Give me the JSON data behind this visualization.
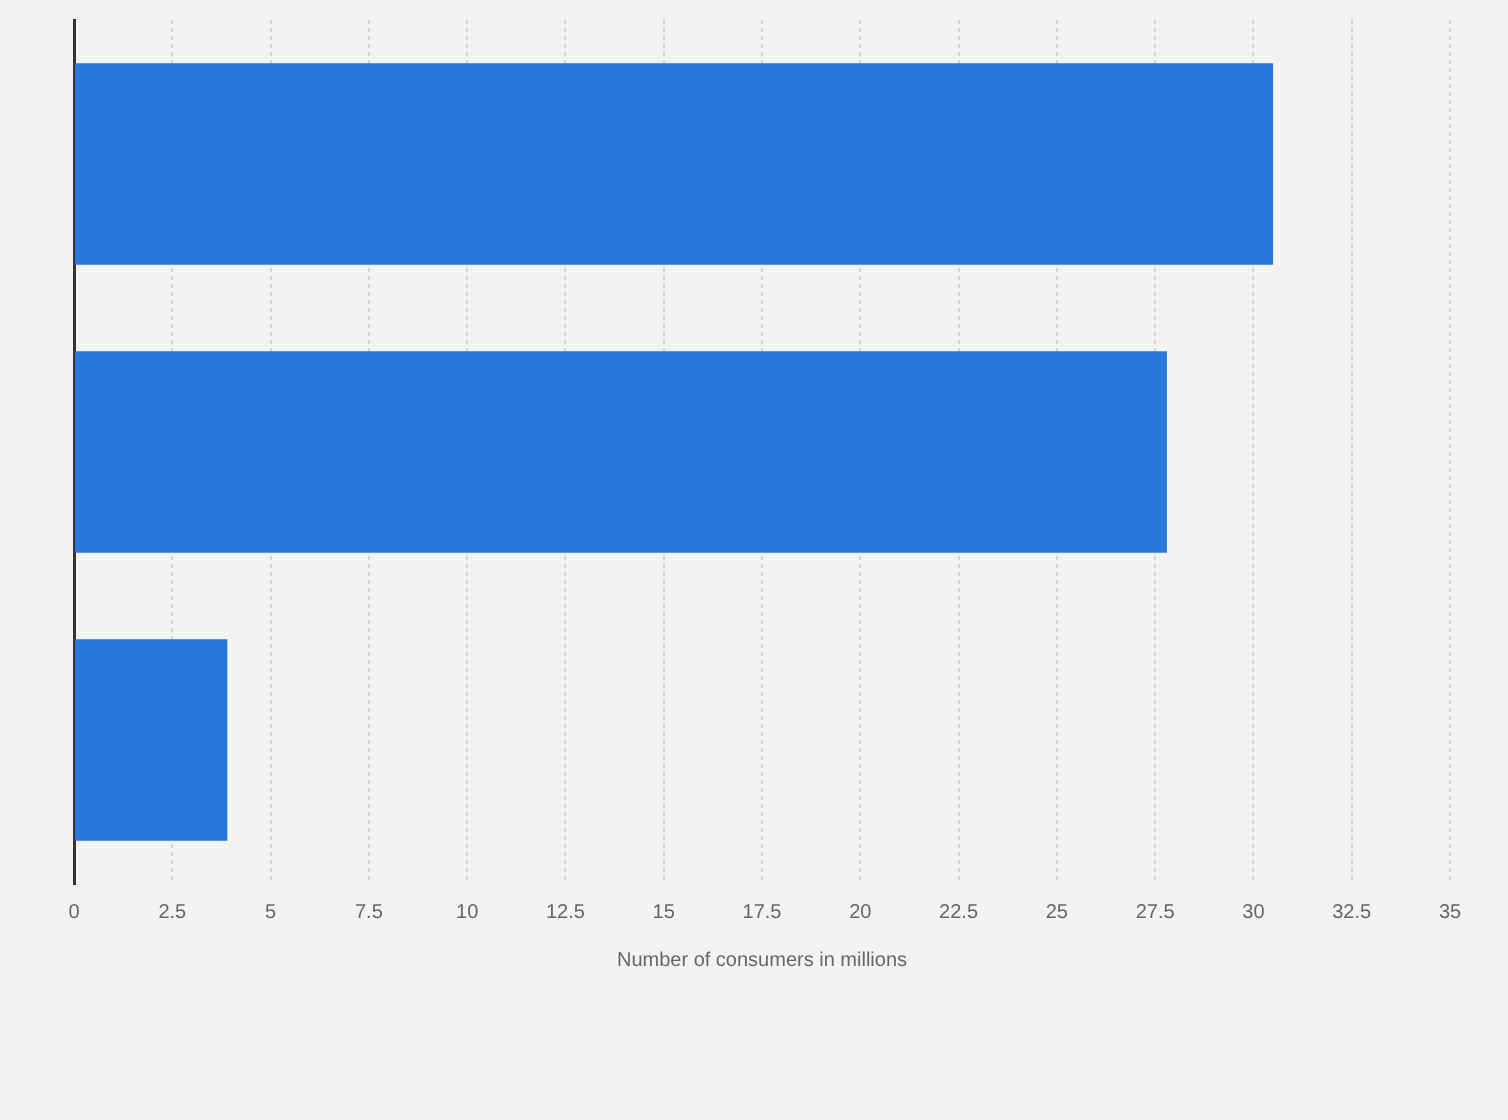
{
  "chart_data": {
    "type": "bar",
    "orientation": "horizontal",
    "xlabel": "Number of consumers in millions",
    "categories": [
      null,
      null,
      null
    ],
    "series": [
      {
        "color": "#2776dc",
        "values": [
          30.5,
          27.8,
          3.9
        ]
      }
    ],
    "xlim": [
      0,
      35
    ],
    "xticks": [
      0,
      2.5,
      5,
      7.5,
      10,
      12.5,
      15,
      17.5,
      20,
      22.5,
      25,
      27.5,
      30,
      32.5,
      35
    ],
    "tick_labels": "x",
    "grid": "x",
    "legend": false
  }
}
